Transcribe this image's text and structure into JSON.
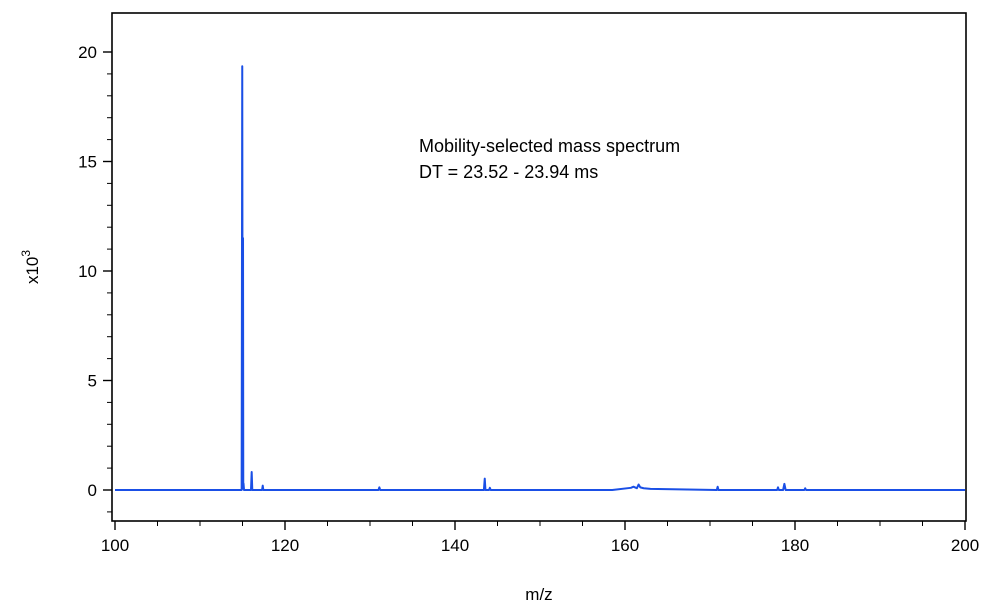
{
  "chart_data": {
    "type": "line",
    "xlabel": "m/z",
    "ylabel": "x10",
    "ylabel_exponent": "3",
    "xlim": [
      100,
      200
    ],
    "ylim": [
      -1.5,
      22
    ],
    "x_ticks": [
      {
        "value": 100,
        "label": "100"
      },
      {
        "value": 120,
        "label": "120"
      },
      {
        "value": 140,
        "label": "140"
      },
      {
        "value": 160,
        "label": "160"
      },
      {
        "value": 180,
        "label": "180"
      },
      {
        "value": 200,
        "label": "200"
      }
    ],
    "y_ticks": [
      {
        "value": 0,
        "label": "0"
      },
      {
        "value": 5,
        "label": "5"
      },
      {
        "value": 10,
        "label": "10"
      },
      {
        "value": 15,
        "label": "15"
      },
      {
        "value": 20,
        "label": "20"
      }
    ],
    "annotations": [
      "Mobility-selected mass spectrum",
      "DT = 23.52 - 23.94 ms"
    ],
    "grid": false,
    "series": [
      {
        "color": "#1a4fe6",
        "x": [
          100,
          103.9,
          104.1,
          110.5,
          113.4,
          114.9,
          114.97,
          115.02,
          115.06,
          115.09,
          115.12,
          115.18,
          116.0,
          116.08,
          116.15,
          117.3,
          117.38,
          117.45,
          131.0,
          131.1,
          131.2,
          143.4,
          143.5,
          143.58,
          144.0,
          144.1,
          144.2,
          158.5,
          160.7,
          161.0,
          161.4,
          161.6,
          161.8,
          162.2,
          163.0,
          170.8,
          170.9,
          171.0,
          177.9,
          178.0,
          178.1,
          178.6,
          178.75,
          178.9,
          181.1,
          181.2,
          181.3,
          200
        ],
        "y": [
          0,
          0,
          0,
          0,
          0,
          0,
          19.35,
          0.2,
          11.5,
          0.05,
          0.3,
          0,
          0,
          0.82,
          0,
          0,
          0.2,
          0,
          0,
          0.12,
          0,
          0,
          0.52,
          0,
          0,
          0.1,
          0,
          0,
          0.1,
          0.15,
          0.08,
          0.25,
          0.12,
          0.08,
          0.05,
          0,
          0.15,
          0,
          0,
          0.12,
          0,
          0,
          0.28,
          0,
          0,
          0.08,
          0,
          0
        ]
      }
    ]
  }
}
